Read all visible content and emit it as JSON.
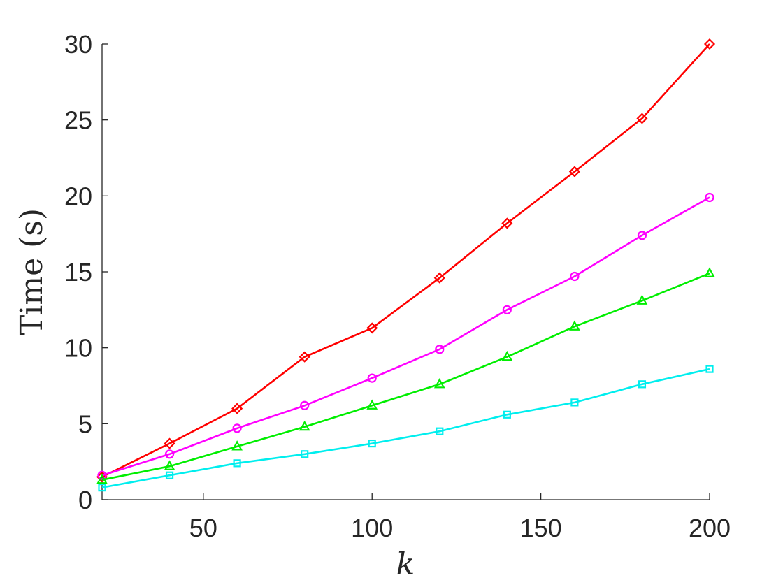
{
  "chart_data": {
    "type": "line",
    "title": "",
    "xlabel": "k",
    "ylabel": "Time (s)",
    "xlim": [
      20,
      200
    ],
    "ylim": [
      0,
      30
    ],
    "xticks": [
      50,
      100,
      150,
      200
    ],
    "yticks": [
      0,
      5,
      10,
      15,
      20,
      25,
      30
    ],
    "grid": false,
    "legend": "none",
    "x": [
      20,
      40,
      60,
      80,
      100,
      120,
      140,
      160,
      180,
      200
    ],
    "series": [
      {
        "color": "#ff0000",
        "marker": "diamond",
        "values": [
          1.5,
          3.7,
          6.0,
          9.4,
          11.3,
          14.6,
          18.2,
          21.6,
          25.1,
          30.0
        ]
      },
      {
        "color": "#ff00ff",
        "marker": "circle",
        "values": [
          1.6,
          3.0,
          4.7,
          6.2,
          8.0,
          9.9,
          12.5,
          14.7,
          17.4,
          19.9
        ]
      },
      {
        "color": "#00ee00",
        "marker": "triangle",
        "values": [
          1.3,
          2.2,
          3.5,
          4.8,
          6.2,
          7.6,
          9.4,
          11.4,
          13.1,
          14.9
        ]
      },
      {
        "color": "#00eeee",
        "marker": "square",
        "values": [
          0.8,
          1.6,
          2.4,
          3.0,
          3.7,
          4.5,
          5.6,
          6.4,
          7.6,
          8.6
        ]
      }
    ]
  }
}
